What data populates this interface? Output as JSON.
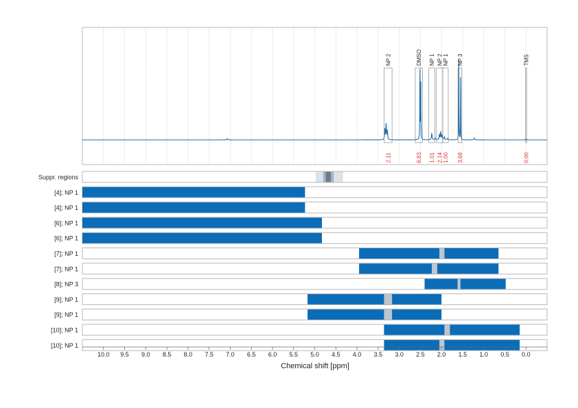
{
  "chart_data": {
    "type": "line",
    "title": "",
    "xlabel": "Chemical shift [ppm]",
    "xlim": [
      10.5,
      -0.5
    ],
    "x_reversed": true,
    "x_ticks": [
      "10.0",
      "9.5",
      "9.0",
      "8.5",
      "8.0",
      "7.5",
      "7.0",
      "6.5",
      "6.0",
      "5.5",
      "5.0",
      "4.5",
      "4.0",
      "3.5",
      "3.0",
      "2.5",
      "2.0",
      "1.5",
      "1.0",
      "0.5",
      "0.0"
    ],
    "grid": true,
    "spectrum": {
      "baseline": 0,
      "peaks": [
        {
          "x": 7.07,
          "h": 0.015,
          "w": 0.01
        },
        {
          "x": 3.34,
          "h": 0.12,
          "w": 0.008
        },
        {
          "x": 3.31,
          "h": 0.18,
          "w": 0.008
        },
        {
          "x": 3.28,
          "h": 0.1,
          "w": 0.008
        },
        {
          "x": 2.51,
          "h": 0.85,
          "w": 0.004
        },
        {
          "x": 2.49,
          "h": 0.65,
          "w": 0.004
        },
        {
          "x": 2.23,
          "h": 0.07,
          "w": 0.01
        },
        {
          "x": 2.15,
          "h": 0.02,
          "w": 0.01
        },
        {
          "x": 2.05,
          "h": 0.06,
          "w": 0.008
        },
        {
          "x": 2.02,
          "h": 0.09,
          "w": 0.008
        },
        {
          "x": 1.99,
          "h": 0.05,
          "w": 0.008
        },
        {
          "x": 1.93,
          "h": 0.035,
          "w": 0.01
        },
        {
          "x": 1.85,
          "h": 0.02,
          "w": 0.01
        },
        {
          "x": 1.59,
          "h": 0.9,
          "w": 0.003
        },
        {
          "x": 1.55,
          "h": 0.82,
          "w": 0.003
        },
        {
          "x": 1.22,
          "h": 0.02,
          "w": 0.01
        },
        {
          "x": 0.0,
          "h": 0.012,
          "w": 0.006
        }
      ]
    },
    "annotations": [
      {
        "label": "NP 2",
        "from": 3.36,
        "to": 3.17,
        "box_top": 0.82,
        "integral": "2.11"
      },
      {
        "label": "DMSO",
        "from": 2.62,
        "to": 2.45,
        "box_top": 0.82,
        "integral": "6.83"
      },
      {
        "label": "NP 1",
        "from": 2.3,
        "to": 2.16,
        "box_top": 0.82,
        "integral": "1.01"
      },
      {
        "label": "NP 2",
        "from": 2.12,
        "to": 1.97,
        "box_top": 0.82,
        "integral": "2.14"
      },
      {
        "label": "NP 1",
        "from": 1.97,
        "to": 1.84,
        "box_top": 0.82,
        "integral": "1.00"
      },
      {
        "label": "NP 3",
        "from": 1.61,
        "to": 1.52,
        "box_top": 0.82,
        "integral": "3.68"
      },
      {
        "label": "TMS",
        "from": 0.01,
        "to": -0.01,
        "box_top": 0.82,
        "integral": "0.00"
      }
    ],
    "suppressed_region": {
      "label": "Suppr. regions",
      "outer": [
        4.98,
        4.33
      ],
      "mid": [
        4.8,
        4.55
      ],
      "inner": [
        4.74,
        4.62
      ]
    },
    "rows": [
      {
        "label": "[4]; NP 1",
        "ranges": [
          [
            10.5,
            5.23
          ]
        ],
        "gaps": []
      },
      {
        "label": "[4]; NP 1",
        "ranges": [
          [
            10.5,
            5.23
          ]
        ],
        "gaps": []
      },
      {
        "label": "[6]; NP 1",
        "ranges": [
          [
            10.5,
            4.83
          ]
        ],
        "gaps": []
      },
      {
        "label": "[6]; NP 1",
        "ranges": [
          [
            10.5,
            4.83
          ]
        ],
        "gaps": []
      },
      {
        "label": "[7]; NP 1",
        "ranges": [
          [
            3.95,
            0.65
          ]
        ],
        "gaps": [
          [
            2.05,
            1.93
          ]
        ]
      },
      {
        "label": "[7]; NP 1",
        "ranges": [
          [
            3.95,
            0.65
          ]
        ],
        "gaps": [
          [
            2.23,
            2.1
          ]
        ]
      },
      {
        "label": "[8]; NP 3",
        "ranges": [
          [
            2.4,
            0.48
          ]
        ],
        "gaps": [
          [
            1.62,
            1.55
          ]
        ]
      },
      {
        "label": "[9]; NP 1",
        "ranges": [
          [
            5.17,
            2.0
          ]
        ],
        "gaps": [
          [
            3.36,
            3.17
          ]
        ]
      },
      {
        "label": "[9]; NP 1",
        "ranges": [
          [
            5.17,
            2.0
          ]
        ],
        "gaps": [
          [
            3.36,
            3.17
          ]
        ]
      },
      {
        "label": "[10]; NP 1",
        "ranges": [
          [
            3.36,
            0.15
          ]
        ],
        "gaps": [
          [
            1.93,
            1.8
          ]
        ]
      },
      {
        "label": "[10]; NP 1",
        "ranges": [
          [
            3.36,
            0.15
          ]
        ],
        "gaps": [
          [
            2.05,
            1.93
          ]
        ]
      }
    ],
    "colors": {
      "spectrum": "#1b6fae",
      "bar": "#0b6cb8",
      "gap": "#bcc6ce",
      "integral": "#e0342e",
      "frame": "#b7b7b7",
      "grid": "#c8c8c8",
      "supp_outer": "#dde3ea",
      "supp_mid": "#a5b2c1",
      "supp_inner": "#6b7c90"
    }
  }
}
